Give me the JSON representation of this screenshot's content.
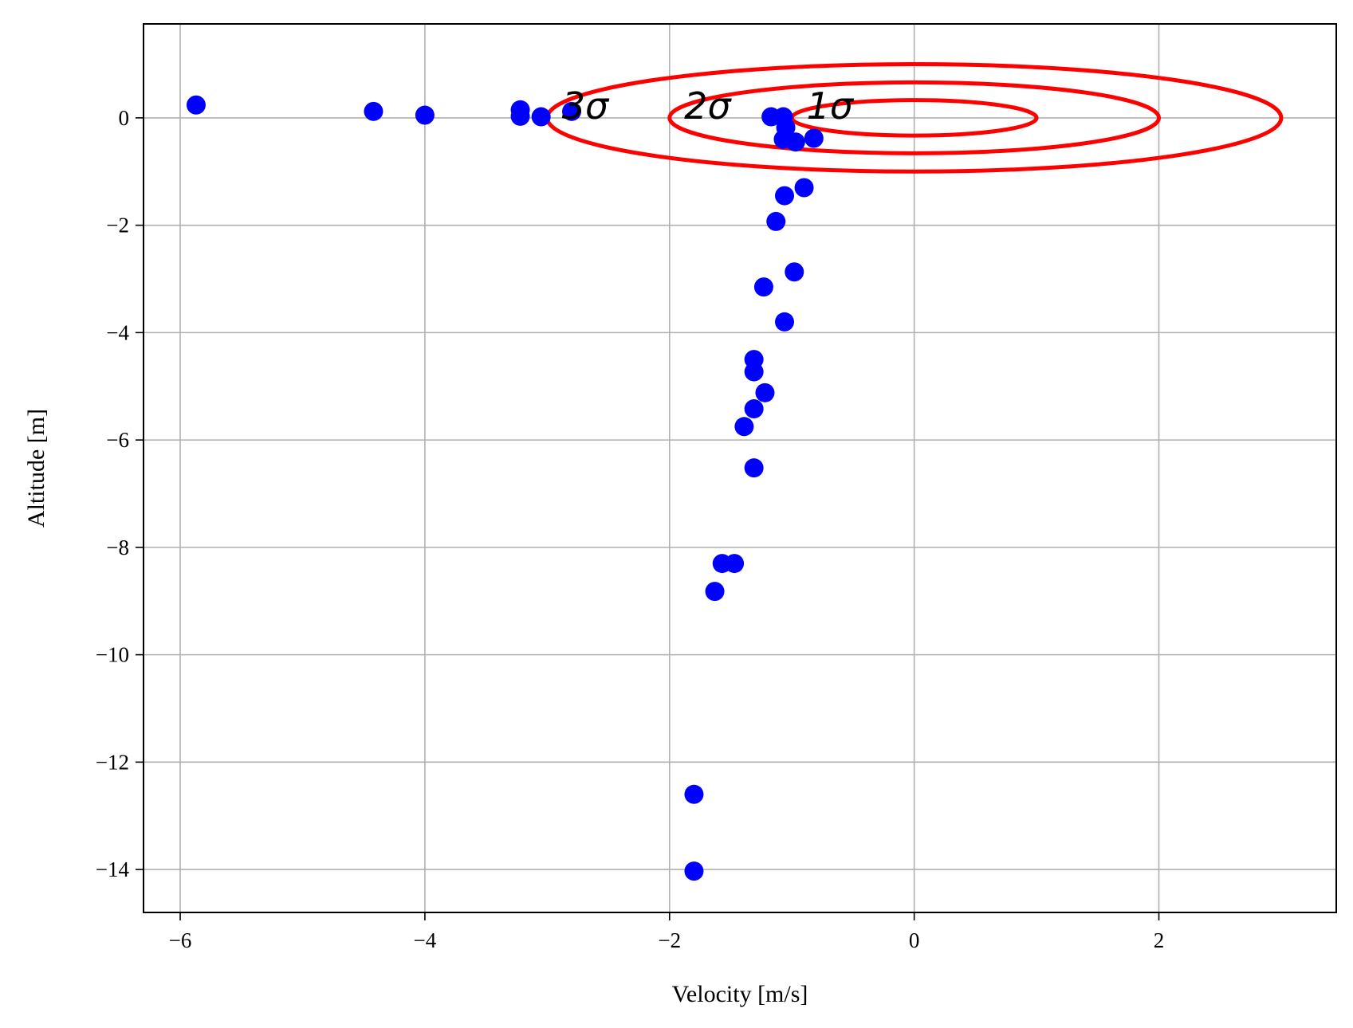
{
  "chart_data": {
    "type": "scatter",
    "title": "",
    "xlabel": "Velocity [m/s]",
    "ylabel": "Altitude [m]",
    "xlim": [
      -6.3,
      3.45
    ],
    "ylim": [
      -14.8,
      1.75
    ],
    "grid": true,
    "x_ticks": [
      -6,
      -4,
      -2,
      0,
      2
    ],
    "x_tick_labels": [
      "−6",
      "−4",
      "−2",
      "0",
      "2"
    ],
    "y_ticks": [
      0,
      -2,
      -4,
      -6,
      -8,
      -10,
      -12,
      -14
    ],
    "y_tick_labels": [
      "0",
      "−2",
      "−4",
      "−6",
      "−8",
      "−10",
      "−12",
      "−14"
    ],
    "point_color": "#0000ff",
    "ellipse_color": "#ff0000",
    "points": [
      {
        "x": -5.87,
        "y": 0.24
      },
      {
        "x": -4.42,
        "y": 0.12
      },
      {
        "x": -4.0,
        "y": 0.05
      },
      {
        "x": -3.22,
        "y": 0.15
      },
      {
        "x": -3.22,
        "y": 0.03
      },
      {
        "x": -3.05,
        "y": 0.02
      },
      {
        "x": -2.8,
        "y": 0.12
      },
      {
        "x": -1.17,
        "y": 0.02
      },
      {
        "x": -1.07,
        "y": 0.02
      },
      {
        "x": -1.05,
        "y": -0.18
      },
      {
        "x": -1.07,
        "y": -0.4
      },
      {
        "x": -0.97,
        "y": -0.45
      },
      {
        "x": -0.82,
        "y": -0.38
      },
      {
        "x": -0.9,
        "y": -1.3
      },
      {
        "x": -1.06,
        "y": -1.45
      },
      {
        "x": -1.13,
        "y": -1.93
      },
      {
        "x": -0.98,
        "y": -2.87
      },
      {
        "x": -1.23,
        "y": -3.15
      },
      {
        "x": -1.06,
        "y": -3.8
      },
      {
        "x": -1.31,
        "y": -4.5
      },
      {
        "x": -1.31,
        "y": -4.73
      },
      {
        "x": -1.22,
        "y": -5.12
      },
      {
        "x": -1.31,
        "y": -5.42
      },
      {
        "x": -1.39,
        "y": -5.75
      },
      {
        "x": -1.31,
        "y": -6.52
      },
      {
        "x": -1.57,
        "y": -8.3
      },
      {
        "x": -1.47,
        "y": -8.3
      },
      {
        "x": -1.63,
        "y": -8.82
      },
      {
        "x": -1.8,
        "y": -12.6
      },
      {
        "x": -1.8,
        "y": -14.03
      }
    ],
    "ellipses": [
      {
        "label": "1σ",
        "cx": 0,
        "cy": 0,
        "rx": 1.0,
        "ry": 0.33,
        "label_x": -0.88,
        "label_y": 0.22
      },
      {
        "label": "2σ",
        "cx": 0,
        "cy": 0,
        "rx": 2.0,
        "ry": 0.66,
        "label_x": -1.88,
        "label_y": 0.22
      },
      {
        "label": "3σ",
        "cx": 0,
        "cy": 0,
        "rx": 3.0,
        "ry": 1.0,
        "label_x": -2.88,
        "label_y": 0.22
      }
    ]
  }
}
